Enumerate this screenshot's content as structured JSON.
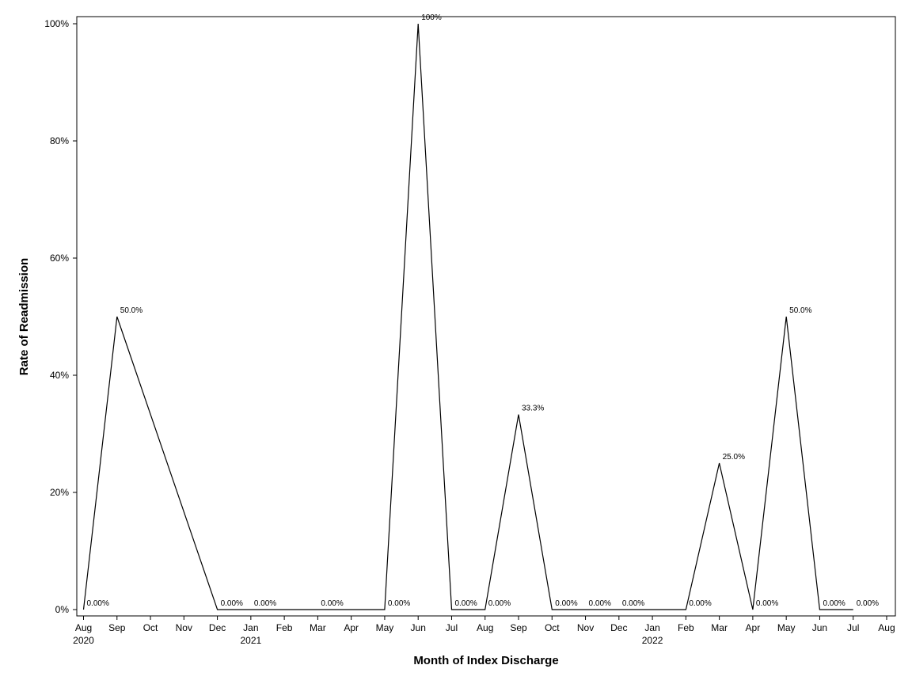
{
  "chart_data": {
    "type": "line",
    "title": "",
    "xlabel": "Month of Index Discharge",
    "ylabel": "Rate of Readmission",
    "ylim": [
      0,
      100
    ],
    "y_unit": "percent",
    "y_ticks": [
      "0%",
      "20%",
      "40%",
      "60%",
      "80%",
      "100%"
    ],
    "y_tick_values": [
      0,
      20,
      40,
      60,
      80,
      100
    ],
    "x_axis_months": [
      "Aug",
      "Sep",
      "Oct",
      "Nov",
      "Dec",
      "Jan",
      "Feb",
      "Mar",
      "Apr",
      "May",
      "Jun",
      "Jul",
      "Aug",
      "Sep",
      "Oct",
      "Nov",
      "Dec",
      "Jan",
      "Feb",
      "Mar",
      "Apr",
      "May",
      "Jun",
      "Jul",
      "Aug"
    ],
    "x_axis_month_dates": [
      "2020-08",
      "2020-09",
      "2020-10",
      "2020-11",
      "2020-12",
      "2021-01",
      "2021-02",
      "2021-03",
      "2021-04",
      "2021-05",
      "2021-06",
      "2021-07",
      "2021-08",
      "2021-09",
      "2021-10",
      "2021-11",
      "2021-12",
      "2022-01",
      "2022-02",
      "2022-03",
      "2022-04",
      "2022-05",
      "2022-06",
      "2022-07",
      "2022-08"
    ],
    "x_axis_years": [
      {
        "label": "2020",
        "month": "2020-08"
      },
      {
        "label": "2021",
        "month": "2021-01"
      },
      {
        "label": "2022",
        "month": "2022-01"
      }
    ],
    "grid": false,
    "legend": "none",
    "line_color": "#000000",
    "series": [
      {
        "points": [
          {
            "x": "2020-08",
            "y": 0,
            "label": "0.00%"
          },
          {
            "x": "2020-09",
            "y": 50,
            "label": "50.0%"
          },
          {
            "x": "2020-12",
            "y": 0,
            "label": "0.00%"
          },
          {
            "x": "2021-01",
            "y": 0,
            "label": "0.00%"
          },
          {
            "x": "2021-03",
            "y": 0,
            "label": "0.00%"
          },
          {
            "x": "2021-05",
            "y": 0,
            "label": "0.00%"
          },
          {
            "x": "2021-06",
            "y": 100,
            "label": "100%"
          },
          {
            "x": "2021-07",
            "y": 0,
            "label": "0.00%"
          },
          {
            "x": "2021-08",
            "y": 0,
            "label": "0.00%"
          },
          {
            "x": "2021-09",
            "y": 33.3,
            "label": "33.3%"
          },
          {
            "x": "2021-10",
            "y": 0,
            "label": "0.00%"
          },
          {
            "x": "2021-11",
            "y": 0,
            "label": "0.00%"
          },
          {
            "x": "2021-12",
            "y": 0,
            "label": "0.00%"
          },
          {
            "x": "2022-02",
            "y": 0,
            "label": "0.00%"
          },
          {
            "x": "2022-03",
            "y": 25,
            "label": "25.0%"
          },
          {
            "x": "2022-04",
            "y": 0,
            "label": "0.00%"
          },
          {
            "x": "2022-05",
            "y": 50,
            "label": "50.0%"
          },
          {
            "x": "2022-06",
            "y": 0,
            "label": "0.00%"
          },
          {
            "x": "2022-07",
            "y": 0,
            "label": "0.00%"
          }
        ]
      }
    ]
  }
}
